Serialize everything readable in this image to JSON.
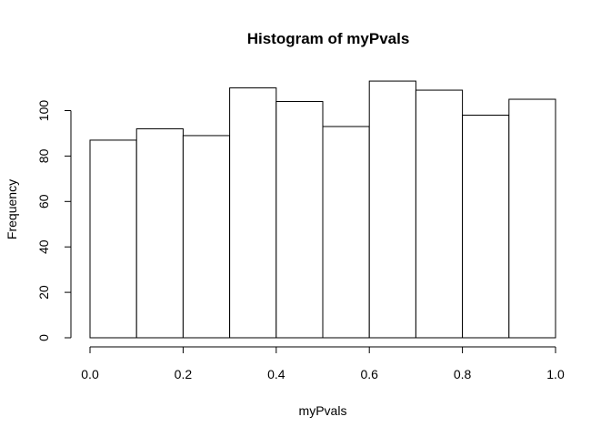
{
  "chart_data": {
    "type": "bar",
    "title": "Histogram of myPvals",
    "xlabel": "myPvals",
    "ylabel": "Frequency",
    "bins": [
      {
        "start": 0.0,
        "end": 0.1,
        "count": 87
      },
      {
        "start": 0.1,
        "end": 0.2,
        "count": 92
      },
      {
        "start": 0.2,
        "end": 0.3,
        "count": 89
      },
      {
        "start": 0.3,
        "end": 0.4,
        "count": 110
      },
      {
        "start": 0.4,
        "end": 0.5,
        "count": 104
      },
      {
        "start": 0.5,
        "end": 0.6,
        "count": 93
      },
      {
        "start": 0.6,
        "end": 0.7,
        "count": 113
      },
      {
        "start": 0.7,
        "end": 0.8,
        "count": 109
      },
      {
        "start": 0.8,
        "end": 0.9,
        "count": 98
      },
      {
        "start": 0.9,
        "end": 1.0,
        "count": 105
      }
    ],
    "xlim": [
      0,
      1
    ],
    "ylim": [
      0,
      120
    ],
    "x_ticks": [
      "0.0",
      "0.2",
      "0.4",
      "0.6",
      "0.8",
      "1.0"
    ],
    "y_ticks": [
      "0",
      "20",
      "40",
      "60",
      "80",
      "100"
    ],
    "grid": false
  }
}
